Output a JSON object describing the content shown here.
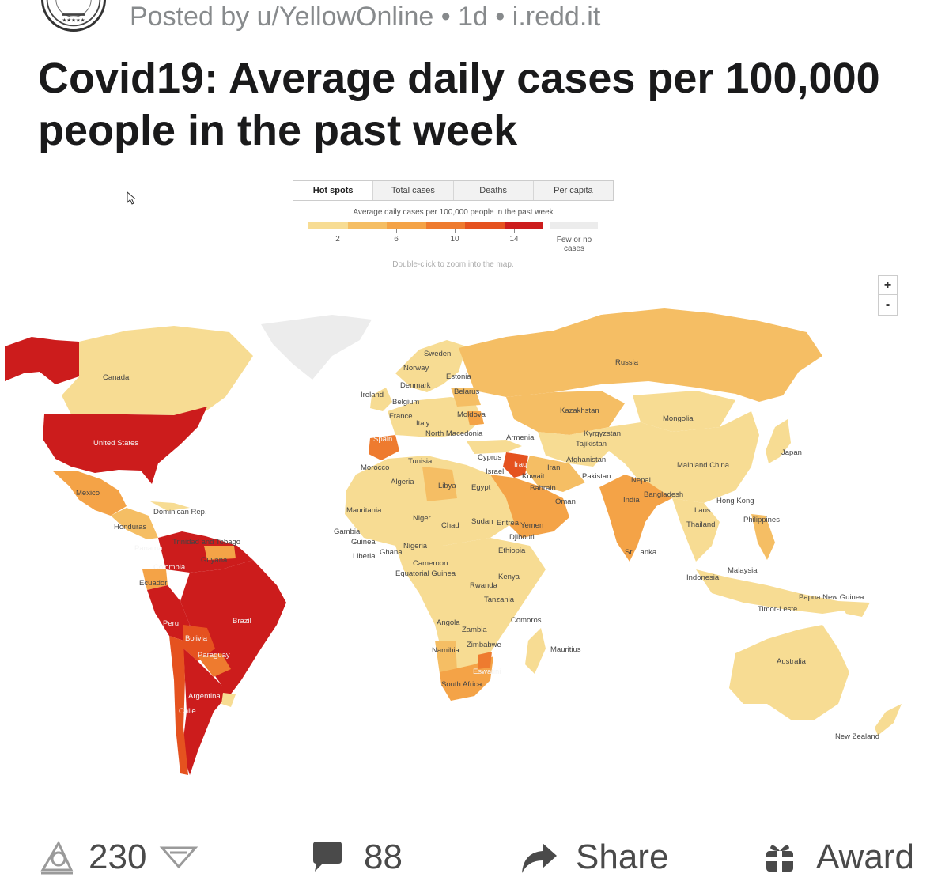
{
  "post": {
    "posted_by": "Posted by u/YellowOnline",
    "separator": "•",
    "age": "1d",
    "domain": "i.redd.it",
    "title": "Covid19: Average daily cases per 100,000 people in the past week"
  },
  "map": {
    "tabs": [
      {
        "label": "Hot spots",
        "active": true
      },
      {
        "label": "Total cases",
        "active": false
      },
      {
        "label": "Deaths",
        "active": false
      },
      {
        "label": "Per capita",
        "active": false
      }
    ],
    "legend": {
      "caption": "Average daily cases per 100,000 people in the past week",
      "colors": [
        "#f7dc93",
        "#f5be64",
        "#f4a347",
        "#ee7b2f",
        "#e5521f",
        "#cc1c1c"
      ],
      "tick_values": [
        "2",
        "6",
        "10",
        "14"
      ],
      "none_label": "Few or no cases",
      "none_color": "#ececec"
    },
    "hint": "Double-click to zoom into the map.",
    "zoom": {
      "in": "+",
      "out": "-"
    },
    "countries": [
      {
        "name": "Canada",
        "level": 1
      },
      {
        "name": "United States",
        "level": 6
      },
      {
        "name": "Mexico",
        "level": 3
      },
      {
        "name": "Honduras",
        "level": 3
      },
      {
        "name": "Dominican Rep.",
        "level": 2
      },
      {
        "name": "Panama",
        "level": 6
      },
      {
        "name": "Trinidad and Tobago",
        "level": 2
      },
      {
        "name": "Guyana",
        "level": 2
      },
      {
        "name": "Colombia",
        "level": 6
      },
      {
        "name": "Ecuador",
        "level": 3
      },
      {
        "name": "Peru",
        "level": 6
      },
      {
        "name": "Brazil",
        "level": 6
      },
      {
        "name": "Bolivia",
        "level": 5
      },
      {
        "name": "Paraguay",
        "level": 4
      },
      {
        "name": "Argentina",
        "level": 6
      },
      {
        "name": "Chile",
        "level": 6
      },
      {
        "name": "Sweden",
        "level": 1
      },
      {
        "name": "Norway",
        "level": 1
      },
      {
        "name": "Estonia",
        "level": 1
      },
      {
        "name": "Denmark",
        "level": 1
      },
      {
        "name": "Ireland",
        "level": 1
      },
      {
        "name": "Belarus",
        "level": 2
      },
      {
        "name": "Belgium",
        "level": 1
      },
      {
        "name": "France",
        "level": 1
      },
      {
        "name": "Moldova",
        "level": 3
      },
      {
        "name": "Italy",
        "level": 1
      },
      {
        "name": "North Macedonia",
        "level": 2
      },
      {
        "name": "Spain",
        "level": 4
      },
      {
        "name": "Armenia",
        "level": 3
      },
      {
        "name": "Russia",
        "level": 2
      },
      {
        "name": "Kazakhstan",
        "level": 2
      },
      {
        "name": "Mongolia",
        "level": 1
      },
      {
        "name": "Kyrgyzstan",
        "level": 2
      },
      {
        "name": "Tajikistan",
        "level": 1
      },
      {
        "name": "Japan",
        "level": 1
      },
      {
        "name": "Mainland China",
        "level": 1
      },
      {
        "name": "Tunisia",
        "level": 1
      },
      {
        "name": "Cyprus",
        "level": 1
      },
      {
        "name": "Afghanistan",
        "level": 1
      },
      {
        "name": "Morocco",
        "level": 1
      },
      {
        "name": "Israel",
        "level": 2
      },
      {
        "name": "Iraq",
        "level": 5
      },
      {
        "name": "Iran",
        "level": 2
      },
      {
        "name": "Algeria",
        "level": 1
      },
      {
        "name": "Kuwait",
        "level": 4
      },
      {
        "name": "Pakistan",
        "level": 1
      },
      {
        "name": "Libya",
        "level": 3
      },
      {
        "name": "Egypt",
        "level": 1
      },
      {
        "name": "Bahrain",
        "level": 4
      },
      {
        "name": "Nepal",
        "level": 3
      },
      {
        "name": "Oman",
        "level": 3
      },
      {
        "name": "India",
        "level": 3
      },
      {
        "name": "Bangladesh",
        "level": 2
      },
      {
        "name": "Hong Kong",
        "level": 1
      },
      {
        "name": "Laos",
        "level": 1
      },
      {
        "name": "Mauritania",
        "level": 1
      },
      {
        "name": "Niger",
        "level": 1
      },
      {
        "name": "Sudan",
        "level": 1
      },
      {
        "name": "Eritrea",
        "level": 1
      },
      {
        "name": "Yemen",
        "level": 1
      },
      {
        "name": "Chad",
        "level": 1
      },
      {
        "name": "Thailand",
        "level": 1
      },
      {
        "name": "Philippines",
        "level": 2
      },
      {
        "name": "Gambia",
        "level": 1
      },
      {
        "name": "Djibouti",
        "level": 1
      },
      {
        "name": "Guinea",
        "level": 1
      },
      {
        "name": "Nigeria",
        "level": 1
      },
      {
        "name": "Ghana",
        "level": 1
      },
      {
        "name": "Ethiopia",
        "level": 1
      },
      {
        "name": "Liberia",
        "level": 1
      },
      {
        "name": "Sri Lanka",
        "level": 1
      },
      {
        "name": "Cameroon",
        "level": 1
      },
      {
        "name": "Equatorial Guinea",
        "level": 1
      },
      {
        "name": "Malaysia",
        "level": 1
      },
      {
        "name": "Kenya",
        "level": 1
      },
      {
        "name": "Indonesia",
        "level": 1
      },
      {
        "name": "Rwanda",
        "level": 1
      },
      {
        "name": "Papua New Guinea",
        "level": 1
      },
      {
        "name": "Tanzania",
        "level": 1
      },
      {
        "name": "Timor-Leste",
        "level": 1
      },
      {
        "name": "Comoros",
        "level": 1
      },
      {
        "name": "Angola",
        "level": 1
      },
      {
        "name": "Zambia",
        "level": 1
      },
      {
        "name": "Mauritius",
        "level": 1
      },
      {
        "name": "Zimbabwe",
        "level": 1
      },
      {
        "name": "Namibia",
        "level": 2
      },
      {
        "name": "Australia",
        "level": 1
      },
      {
        "name": "Eswatini",
        "level": 4
      },
      {
        "name": "South Africa",
        "level": 3
      },
      {
        "name": "New Zealand",
        "level": 1
      }
    ]
  },
  "actions": {
    "votes": "230",
    "comments": "88",
    "share": "Share",
    "award": "Award"
  }
}
